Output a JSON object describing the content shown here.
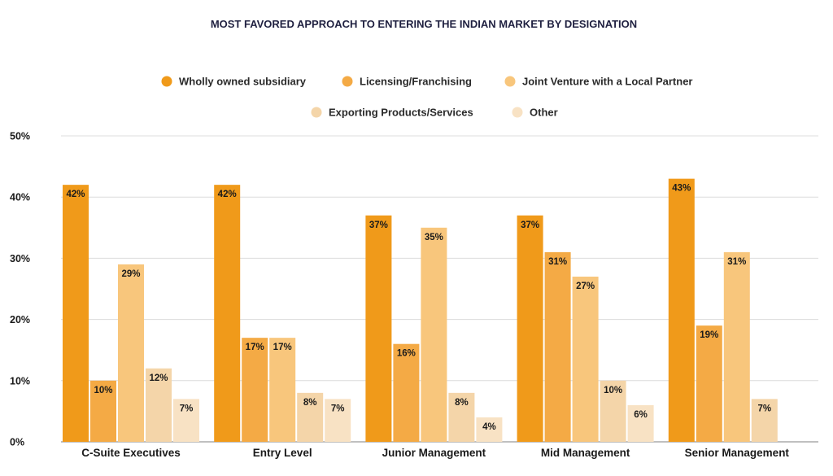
{
  "chart_data": {
    "type": "bar",
    "title": "MOST FAVORED APPROACH TO ENTERING THE INDIAN MARKET BY DESIGNATION",
    "xlabel": "",
    "ylabel": "",
    "ylim": [
      0,
      50
    ],
    "yticks": [
      0,
      10,
      20,
      30,
      40,
      50
    ],
    "ytick_labels": [
      "0%",
      "10%",
      "20%",
      "30%",
      "40%",
      "50%"
    ],
    "value_suffix": "%",
    "grid": true,
    "legend_position": "top-center",
    "categories": [
      "C-Suite Executives",
      "Entry Level",
      "Junior Management",
      "Mid Management",
      "Senior Management"
    ],
    "series": [
      {
        "name": "Wholly owned subsidiary",
        "color": "#F09A1A",
        "values": [
          42,
          42,
          37,
          37,
          43
        ]
      },
      {
        "name": "Licensing/Franchising",
        "color": "#F4AA45",
        "values": [
          10,
          17,
          16,
          31,
          19
        ]
      },
      {
        "name": "Joint Venture with a Local Partner",
        "color": "#F8C67C",
        "values": [
          29,
          17,
          35,
          27,
          31
        ]
      },
      {
        "name": "Exporting Products/Services",
        "color": "#F4D5A9",
        "values": [
          12,
          8,
          8,
          10,
          7
        ]
      },
      {
        "name": "Other",
        "color": "#F8E2C4",
        "values": [
          7,
          7,
          4,
          6,
          null
        ]
      }
    ]
  }
}
